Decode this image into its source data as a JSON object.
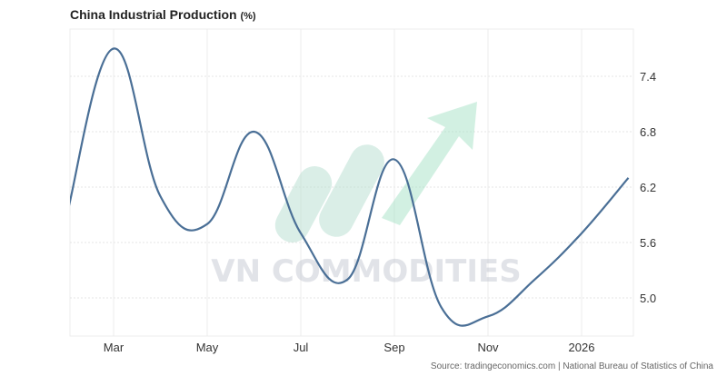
{
  "chart_data": {
    "type": "line",
    "title": "China Industrial Production",
    "unit": "(%)",
    "x": [
      "2025-02",
      "2025-03",
      "2025-04",
      "2025-05",
      "2025-06",
      "2025-07",
      "2025-08",
      "2025-09",
      "2025-10",
      "2025-11",
      "2025-12",
      "2026-01",
      "2026-02"
    ],
    "series": [
      {
        "values": [
          5.9,
          7.7,
          6.1,
          5.8,
          6.8,
          5.7,
          5.2,
          6.5,
          4.9,
          4.8,
          5.2,
          5.7,
          6.3
        ],
        "color": "#4a6f96"
      }
    ],
    "x_tick_labels": [
      "Mar",
      "May",
      "Jul",
      "Sep",
      "Nov",
      "2026"
    ],
    "y_ticks": [
      "5.0",
      "5.6",
      "6.2",
      "6.8",
      "7.4"
    ],
    "ylim": [
      4.6,
      7.9
    ],
    "grid": true,
    "y_axis_side": "right"
  },
  "source": "Source: tradingeconomics.com | National Bureau of Statistics of China",
  "watermark": "VN COMMODITIES"
}
